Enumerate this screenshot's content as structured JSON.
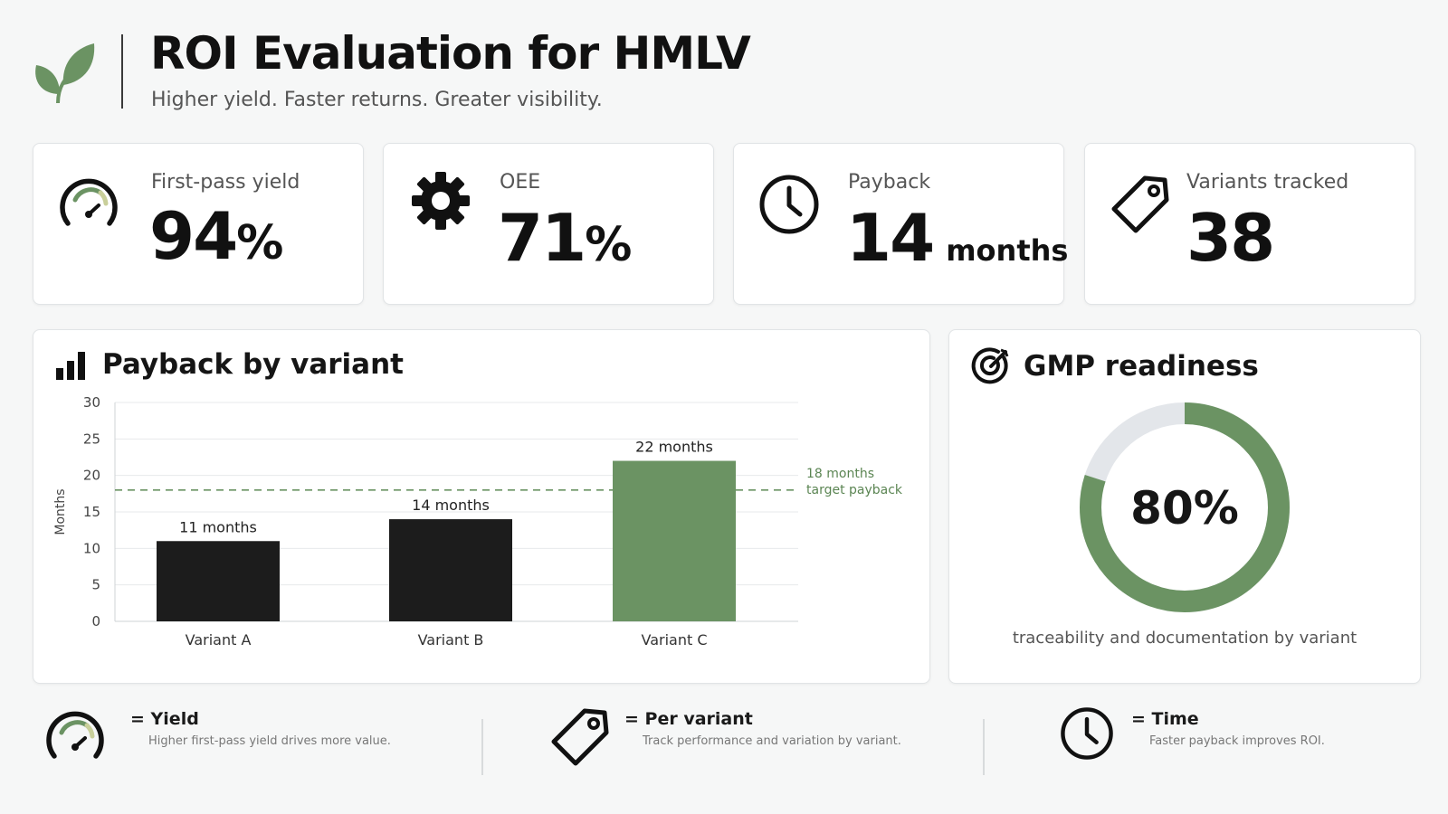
{
  "header": {
    "title": "ROI Evaluation for HMLV",
    "subtitle": "Higher yield. Faster returns. Greater visibility."
  },
  "colors": {
    "accent": "#6b9363",
    "dark": "#1c1c1c",
    "track": "#e3e6ea"
  },
  "kpis": [
    {
      "icon": "gauge-icon",
      "label": "First-pass yield",
      "value": "94",
      "unit": "%"
    },
    {
      "icon": "gear-icon",
      "label": "OEE",
      "value": "71",
      "unit": "%"
    },
    {
      "icon": "clock-icon",
      "label": "Payback",
      "value": "14",
      "unit": "months"
    },
    {
      "icon": "tag-icon",
      "label": "Variants tracked",
      "value": "38",
      "unit": ""
    }
  ],
  "payback_panel": {
    "title": "Payback by variant",
    "icon": "bar-chart-icon"
  },
  "gmp_panel": {
    "title": "GMP readiness",
    "icon": "target-icon",
    "value_label": "80%",
    "value": 0.8,
    "caption": "traceability and documentation by variant"
  },
  "chart_data": {
    "type": "bar",
    "categories": [
      "Variant A",
      "Variant B",
      "Variant C"
    ],
    "values": [
      11,
      14,
      22
    ],
    "data_labels": [
      "11 months",
      "14 months",
      "22 months"
    ],
    "bar_colors": [
      "#1c1c1c",
      "#1c1c1c",
      "#6b9363"
    ],
    "ylabel": "Months",
    "ylim": [
      0,
      30
    ],
    "yticks": [
      0,
      5,
      10,
      15,
      20,
      25,
      30
    ],
    "grid": true,
    "reference_line": {
      "value": 18,
      "label_line1": "18 months",
      "label_line2": "target payback"
    }
  },
  "legend": [
    {
      "icon": "gauge-icon",
      "title": "= Yield",
      "desc": "Higher first-pass yield drives more value."
    },
    {
      "icon": "tag-icon",
      "title": "= Per variant",
      "desc": "Track performance and variation by variant."
    },
    {
      "icon": "clock-icon",
      "title": "= Time",
      "desc": "Faster payback improves ROI."
    }
  ]
}
